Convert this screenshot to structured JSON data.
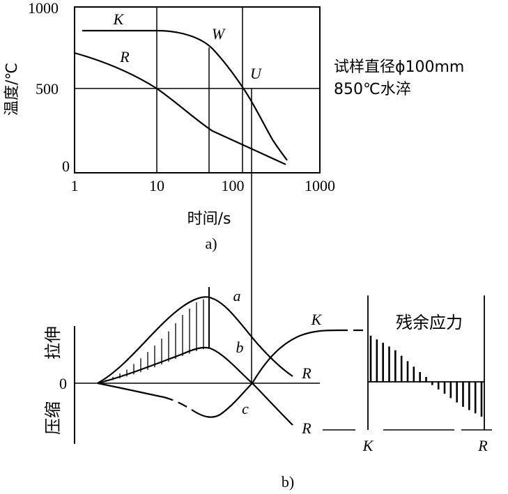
{
  "top_chart": {
    "y_axis_label": "温度/℃",
    "y_ticks": [
      "1000",
      "500",
      "0"
    ],
    "x_ticks": [
      "1",
      "10",
      "100",
      "1000"
    ],
    "x_axis_label": "时间/s",
    "caption": "a)",
    "curve_labels": {
      "K": "K",
      "R": "R",
      "W": "W",
      "U": "U"
    },
    "note_line1": "试样直径ϕ100mm",
    "note_line2": "850℃水淬"
  },
  "bottom_chart": {
    "label_tension": "拉伸",
    "label_compression": "压缩",
    "zero_label": "0",
    "curve_labels": {
      "a": "a",
      "b": "b",
      "c": "c",
      "K": "K",
      "R_upper": "R",
      "R_lower": "R"
    },
    "residual_title": "残余应力",
    "residual_left_label": "K",
    "residual_right_label": "R",
    "residual_bars": [
      0.85,
      0.78,
      0.72,
      0.65,
      0.58,
      0.48,
      0.38,
      0.28,
      0.18,
      0.09,
      -0.06,
      -0.14,
      -0.22,
      -0.3,
      -0.38,
      -0.46,
      -0.52,
      -0.58,
      -0.64
    ],
    "caption": "b)"
  }
}
